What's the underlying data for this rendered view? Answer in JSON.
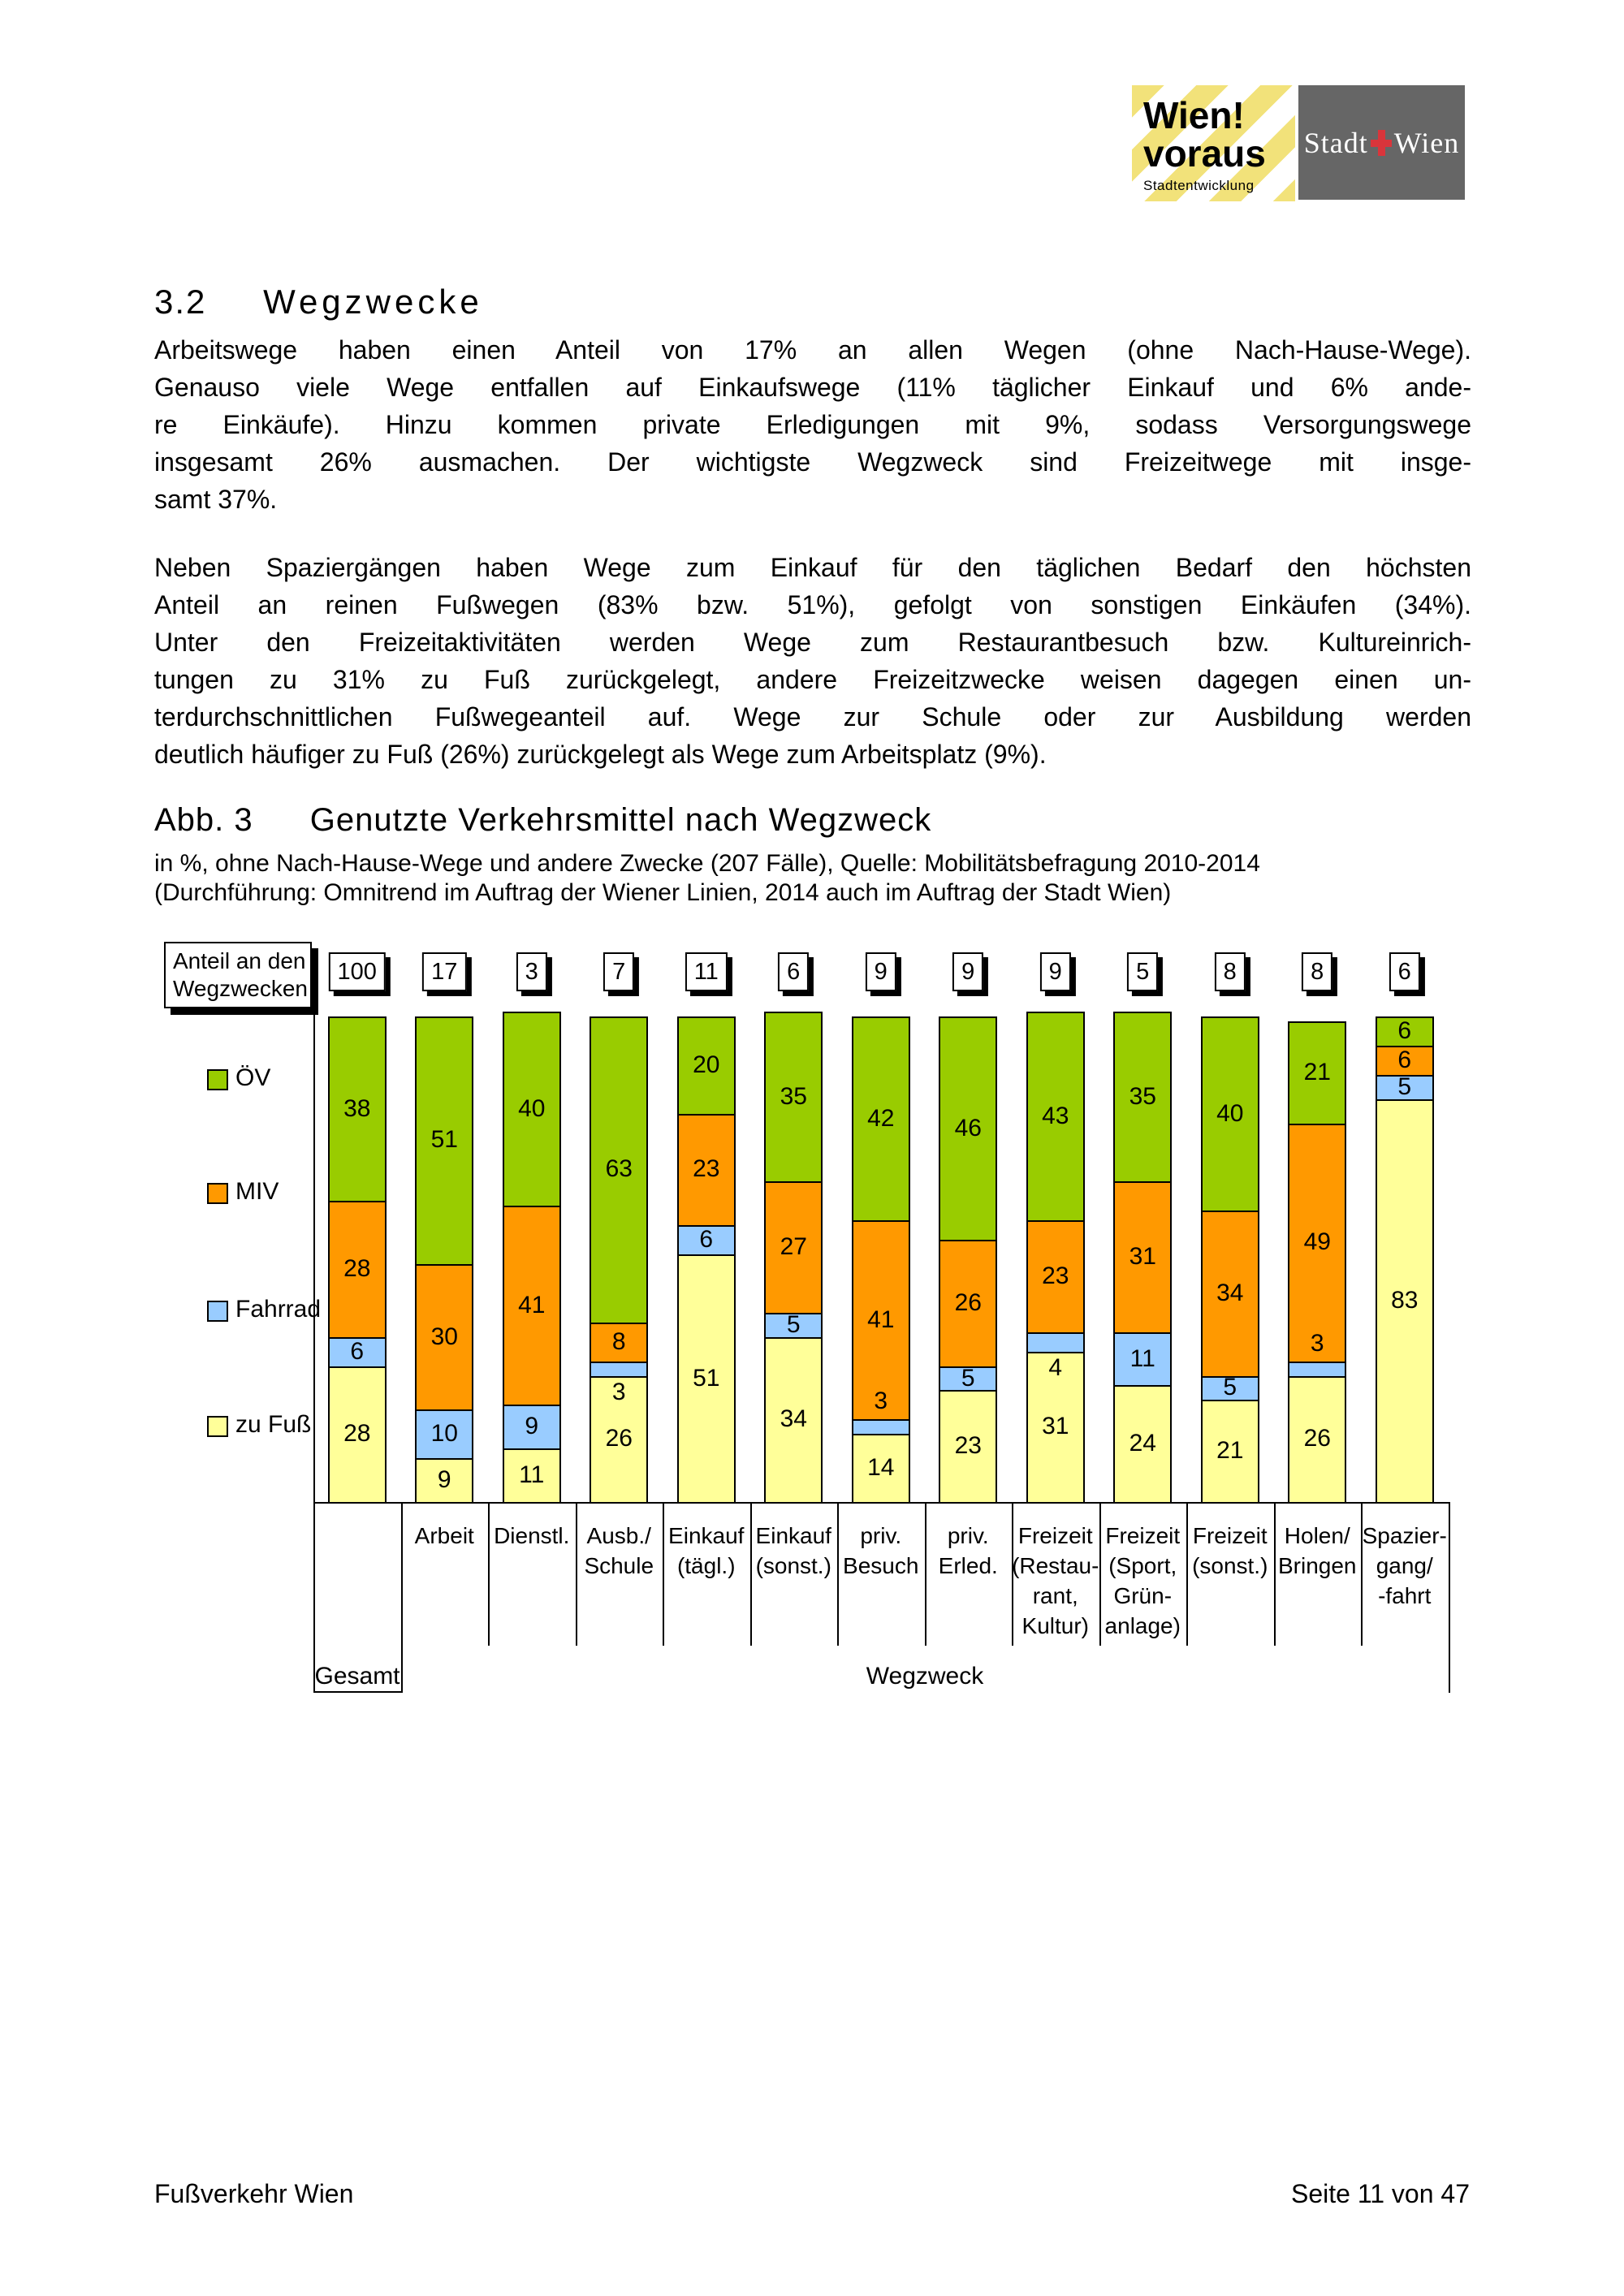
{
  "header": {
    "logo_left": {
      "line1": "Wien!",
      "line2": "voraus",
      "subline": "Stadtentwicklung"
    },
    "logo_right": {
      "text_left": "Stadt",
      "text_right": "Wien",
      "cross_icon": "red-cross"
    }
  },
  "section": {
    "number": "3.2",
    "title": "Wegzwecke"
  },
  "paragraphs": [
    {
      "lines": [
        "Arbeitswege haben einen Anteil von 17% an allen Wegen (ohne Nach-Hause-Wege).",
        "Genauso viele Wege entfallen auf Einkaufswege (11% täglicher Einkauf und 6% ande-",
        "re Einkäufe). Hinzu kommen private Erledigungen mit 9%, sodass Versorgungswege",
        "insgesamt 26% ausmachen. Der wichtigste Wegzweck sind Freizeitwege mit insge-",
        "samt 37%."
      ]
    },
    {
      "lines": [
        "Neben Spaziergängen haben Wege zum Einkauf für den täglichen Bedarf den höchsten",
        "Anteil an reinen Fußwegen (83% bzw. 51%), gefolgt von sonstigen Einkäufen (34%).",
        "Unter den Freizeitaktivitäten werden Wege zum Restaurantbesuch bzw. Kultureinrich-",
        "tungen zu 31% zu Fuß zurückgelegt, andere Freizeitzwecke weisen dagegen einen un-",
        "terdurchschnittlichen Fußwegeanteil auf. Wege zur Schule oder zur Ausbildung werden",
        "deutlich häufiger zu Fuß (26%) zurückgelegt als Wege zum Arbeitsplatz (9%)."
      ]
    }
  ],
  "figure": {
    "label": "Abb. 3",
    "title": "Genutzte Verkehrsmittel nach Wegzweck",
    "subtitle_lines": [
      "in %, ohne Nach-Hause-Wege und andere Zwecke (207 Fälle), Quelle: Mobilitätsbefragung 2010-2014",
      "(Durchführung: Omnitrend im Auftrag der Wiener Linien, 2014 auch im Auftrag der Stadt Wien)"
    ]
  },
  "chart_data": {
    "type": "bar",
    "stacked": true,
    "unit": "%",
    "share_box_lines": [
      "Anteil an den",
      "Wegzwecken"
    ],
    "share_values": [
      100,
      17,
      3,
      7,
      11,
      6,
      9,
      9,
      9,
      5,
      8,
      8,
      6
    ],
    "categories": [
      "Gesamt",
      "Arbeit",
      "Dienstl.",
      "Ausb./Schule",
      "Einkauf (tägl.)",
      "Einkauf (sonst.)",
      "priv. Besuch",
      "priv. Erled.",
      "Freizeit (Restaurant, Kultur)",
      "Freizeit (Sport, Grünanlage)",
      "Freizeit (sonst.)",
      "Holen/Bringen",
      "Spaziergang/-fahrt"
    ],
    "category_label_lines": [
      [],
      [
        "Arbeit"
      ],
      [
        "Dienstl."
      ],
      [
        "Ausb./",
        "Schule"
      ],
      [
        "Einkauf",
        "(tägl.)"
      ],
      [
        "Einkauf",
        "(sonst.)"
      ],
      [
        "priv.",
        "Besuch"
      ],
      [
        "priv.",
        "Erled."
      ],
      [
        "Freizeit",
        "(Restau-",
        "rant,",
        "Kultur)"
      ],
      [
        "Freizeit",
        "(Sport,",
        "Grün-",
        "anlage)"
      ],
      [
        "Freizeit",
        "(sonst.)"
      ],
      [
        "Holen/",
        "Bringen"
      ],
      [
        "Spazier-",
        "gang/",
        "-fahrt"
      ]
    ],
    "series": [
      {
        "name": "zu Fuß",
        "color": "#FFFF99",
        "values": [
          28,
          9,
          11,
          26,
          51,
          34,
          14,
          23,
          31,
          24,
          21,
          26,
          83
        ]
      },
      {
        "name": "Fahrrad",
        "color": "#99CCFF",
        "values": [
          6,
          10,
          9,
          3,
          6,
          5,
          3,
          5,
          4,
          11,
          5,
          3,
          5
        ]
      },
      {
        "name": "MIV",
        "color": "#FF9900",
        "values": [
          28,
          30,
          41,
          8,
          23,
          27,
          41,
          26,
          23,
          31,
          34,
          49,
          6
        ]
      },
      {
        "name": "ÖV",
        "color": "#99CC00",
        "values": [
          38,
          51,
          40,
          63,
          20,
          35,
          42,
          46,
          43,
          35,
          40,
          21,
          6
        ]
      }
    ],
    "legend_order_top_to_bottom": [
      "ÖV",
      "MIV",
      "Fahrrad",
      "zu Fuß"
    ],
    "axis_row_labels": {
      "first": "Gesamt",
      "group": "Wegzweck"
    },
    "label_overrides": [
      {
        "bar": 3,
        "series": "Fahrrad",
        "pos": "below"
      },
      {
        "bar": 6,
        "series": "Fahrrad",
        "pos": "above"
      },
      {
        "bar": 8,
        "series": "Fahrrad",
        "pos": "below"
      },
      {
        "bar": 11,
        "series": "Fahrrad",
        "pos": "above"
      }
    ]
  },
  "footer": {
    "left": "Fußverkehr Wien",
    "right": "Seite 11 von 47"
  }
}
